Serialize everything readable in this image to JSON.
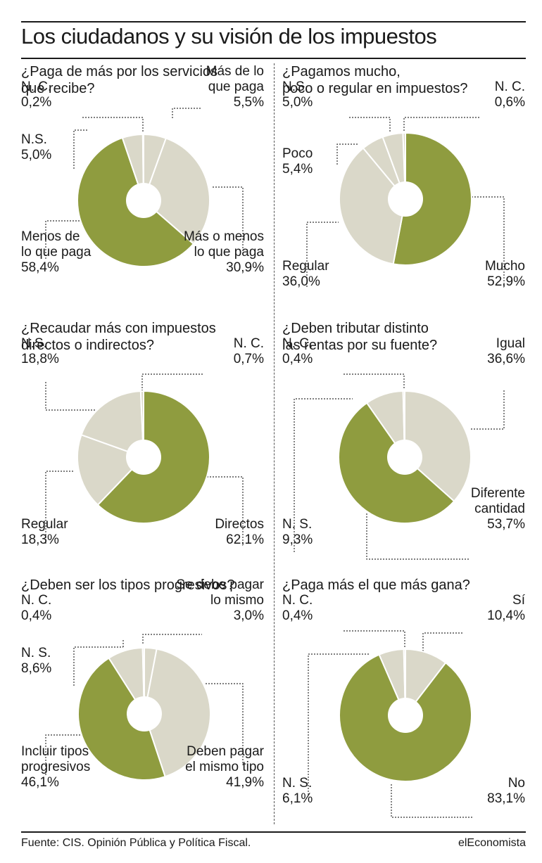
{
  "title": "Los ciudadanos y su visión de los impuestos",
  "footer": {
    "source": "Fuente: CIS. Opinión Pública y Política Fiscal.",
    "brand": "elEconomista"
  },
  "colors": {
    "olive": "#8f9c3f",
    "beige": "#dad8c9",
    "border": "#ffffff"
  },
  "chart_data": [
    {
      "type": "pie",
      "title": "¿Paga de más por los servicios\nque recibe?",
      "slices": [
        {
          "label": "Más de lo\nque paga",
          "value": 5.5,
          "display": "5,5%",
          "color": "beige"
        },
        {
          "label": "Más o menos\nlo que paga",
          "value": 30.9,
          "display": "30,9%",
          "color": "beige"
        },
        {
          "label": "Menos de\nlo que paga",
          "value": 58.4,
          "display": "58,4%",
          "color": "olive"
        },
        {
          "label": "N.S.",
          "value": 5.0,
          "display": "5,0%",
          "color": "beige"
        },
        {
          "label": "N. C.",
          "value": 0.2,
          "display": "0,2%",
          "color": "beige"
        }
      ]
    },
    {
      "type": "pie",
      "title": "¿Pagamos mucho,\npoco o regular en impuestos?",
      "slices": [
        {
          "label": "Mucho",
          "value": 52.9,
          "display": "52,9%",
          "color": "olive"
        },
        {
          "label": "Regular",
          "value": 36.0,
          "display": "36,0%",
          "color": "beige"
        },
        {
          "label": "Poco",
          "value": 5.4,
          "display": "5,4%",
          "color": "beige"
        },
        {
          "label": "N.S.",
          "value": 5.0,
          "display": "5,0%",
          "color": "beige"
        },
        {
          "label": "N. C.",
          "value": 0.6,
          "display": "0,6%",
          "color": "beige"
        }
      ]
    },
    {
      "type": "pie",
      "title": "¿Recaudar más con impuestos\ndirectos o indirectos?",
      "slices": [
        {
          "label": "Directos",
          "value": 62.1,
          "display": "62,1%",
          "color": "olive"
        },
        {
          "label": "Regular",
          "value": 18.3,
          "display": "18,3%",
          "color": "beige"
        },
        {
          "label": "N.S.",
          "value": 18.8,
          "display": "18,8%",
          "color": "beige"
        },
        {
          "label": "N. C.",
          "value": 0.7,
          "display": "0,7%",
          "color": "beige"
        }
      ]
    },
    {
      "type": "pie",
      "title": "¿Deben tributar distinto\nlas rentas por su fuente?",
      "slices": [
        {
          "label": "Igual",
          "value": 36.6,
          "display": "36,6%",
          "color": "beige"
        },
        {
          "label": "Diferente\ncantidad",
          "value": 53.7,
          "display": "53,7%",
          "color": "olive"
        },
        {
          "label": "N. S.",
          "value": 9.3,
          "display": "9,3%",
          "color": "beige"
        },
        {
          "label": "N. C.",
          "value": 0.4,
          "display": "0,4%",
          "color": "beige"
        }
      ]
    },
    {
      "type": "pie",
      "title": "¿Deben ser los tipos progresivos?",
      "slices": [
        {
          "label": "Se debe pagar\nlo mismo",
          "value": 3.0,
          "display": "3,0%",
          "color": "beige"
        },
        {
          "label": "Deben pagar\nel mismo tipo",
          "value": 41.9,
          "display": "41,9%",
          "color": "beige"
        },
        {
          "label": "Incluir tipos\nprogresivos",
          "value": 46.1,
          "display": "46,1%",
          "color": "olive"
        },
        {
          "label": "N. S.",
          "value": 8.6,
          "display": "8,6%",
          "color": "beige"
        },
        {
          "label": "N. C.",
          "value": 0.4,
          "display": "0,4%",
          "color": "beige"
        }
      ]
    },
    {
      "type": "pie",
      "title": "¿Paga más el que más gana?",
      "slices": [
        {
          "label": "Sí",
          "value": 10.4,
          "display": "10,4%",
          "color": "beige"
        },
        {
          "label": "No",
          "value": 83.1,
          "display": "83,1%",
          "color": "olive"
        },
        {
          "label": "N. S.",
          "value": 6.1,
          "display": "6,1%",
          "color": "beige"
        },
        {
          "label": "N. C.",
          "value": 0.4,
          "display": "0,4%",
          "color": "beige"
        }
      ]
    }
  ]
}
